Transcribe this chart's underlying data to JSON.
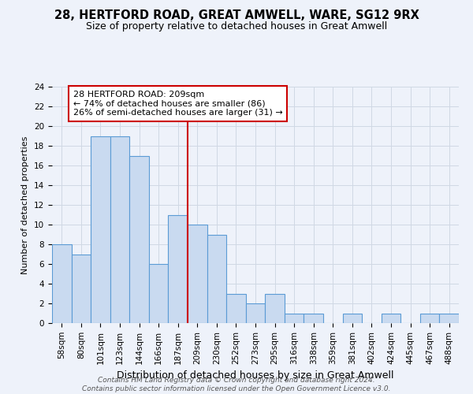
{
  "title": "28, HERTFORD ROAD, GREAT AMWELL, WARE, SG12 9RX",
  "subtitle": "Size of property relative to detached houses in Great Amwell",
  "xlabel": "Distribution of detached houses by size in Great Amwell",
  "ylabel": "Number of detached properties",
  "bin_labels": [
    "58sqm",
    "80sqm",
    "101sqm",
    "123sqm",
    "144sqm",
    "166sqm",
    "187sqm",
    "209sqm",
    "230sqm",
    "252sqm",
    "273sqm",
    "295sqm",
    "316sqm",
    "338sqm",
    "359sqm",
    "381sqm",
    "402sqm",
    "424sqm",
    "445sqm",
    "467sqm",
    "488sqm"
  ],
  "bar_heights": [
    8,
    7,
    19,
    19,
    17,
    6,
    11,
    10,
    9,
    3,
    2,
    3,
    1,
    1,
    0,
    1,
    0,
    1,
    0,
    1,
    1
  ],
  "bar_color": "#c9daf0",
  "bar_edge_color": "#5b9bd5",
  "bar_edge_width": 0.8,
  "red_line_index": 7,
  "red_line_color": "#cc0000",
  "ylim": [
    0,
    24
  ],
  "yticks": [
    0,
    2,
    4,
    6,
    8,
    10,
    12,
    14,
    16,
    18,
    20,
    22,
    24
  ],
  "grid_color": "#d0d8e4",
  "background_color": "#eef2fa",
  "annotation_line1": "28 HERTFORD ROAD: 209sqm",
  "annotation_line2": "← 74% of detached houses are smaller (86)",
  "annotation_line3": "26% of semi-detached houses are larger (31) →",
  "annotation_box_color": "#ffffff",
  "annotation_border_color": "#cc0000",
  "footer_text": "Contains HM Land Registry data © Crown copyright and database right 2024.\nContains public sector information licensed under the Open Government Licence v3.0.",
  "title_fontsize": 10.5,
  "subtitle_fontsize": 9,
  "xlabel_fontsize": 9,
  "ylabel_fontsize": 8,
  "tick_fontsize": 7.5,
  "annotation_fontsize": 8,
  "footer_fontsize": 6.5
}
